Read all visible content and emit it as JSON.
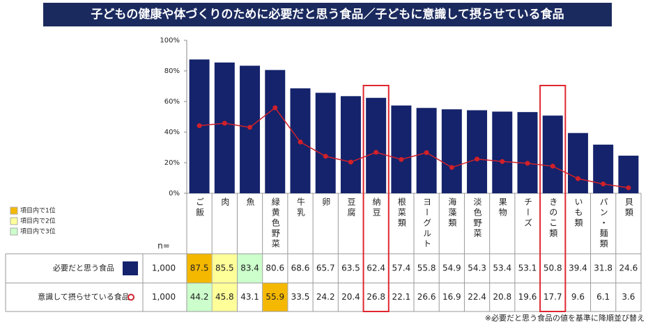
{
  "chart_data": {
    "type": "bar_line_table",
    "title": "子どもの健康や体づくりのために必要だと思う食品／子どもに意識して摂らせている食品",
    "categories": [
      "ご飯",
      "肉",
      "魚",
      "緑黄色野菜",
      "牛乳",
      "卵",
      "豆腐",
      "納豆",
      "根菜類",
      "ヨーグルト",
      "海藻類",
      "淡色野菜",
      "果物",
      "チーズ",
      "きのこ類",
      "いも類",
      "パン・麺類",
      "貝類"
    ],
    "series": [
      {
        "name": "必要だと思う食品",
        "type": "bar",
        "color": "#14236b",
        "values": [
          87.5,
          85.5,
          83.4,
          80.6,
          68.6,
          65.7,
          63.5,
          62.4,
          57.4,
          55.8,
          54.9,
          54.3,
          53.4,
          53.1,
          50.8,
          39.4,
          31.8,
          24.6
        ]
      },
      {
        "name": "意識して摂らせている食品",
        "type": "line",
        "color": "#d0202a",
        "values": [
          44.2,
          45.8,
          43.1,
          55.9,
          33.5,
          24.2,
          20.4,
          26.8,
          22.1,
          26.6,
          16.9,
          22.4,
          20.8,
          19.6,
          17.7,
          9.6,
          6.1,
          3.6
        ]
      }
    ],
    "ylim": [
      0,
      100
    ],
    "yticks": [
      {
        "value": 0,
        "label": "0%"
      },
      {
        "value": 20,
        "label": "20%"
      },
      {
        "value": 40,
        "label": "40%"
      },
      {
        "value": 60,
        "label": "60%"
      },
      {
        "value": 80,
        "label": "80%"
      },
      {
        "value": 100,
        "label": "100%"
      }
    ],
    "n_title": "n=",
    "n": {
      "value": 1000,
      "label": "1,000"
    },
    "rank_legend": [
      "項目内で1位",
      "項目内で2位",
      "項目内で3位"
    ],
    "rank_colors": [
      "#f5b800",
      "#ffff99",
      "#ccffcc"
    ],
    "highlight_categories": [
      7,
      14
    ],
    "highlight_color": "#e0262e",
    "footnote": "※必要だと思う食品の値を基準に降順並び替え"
  }
}
